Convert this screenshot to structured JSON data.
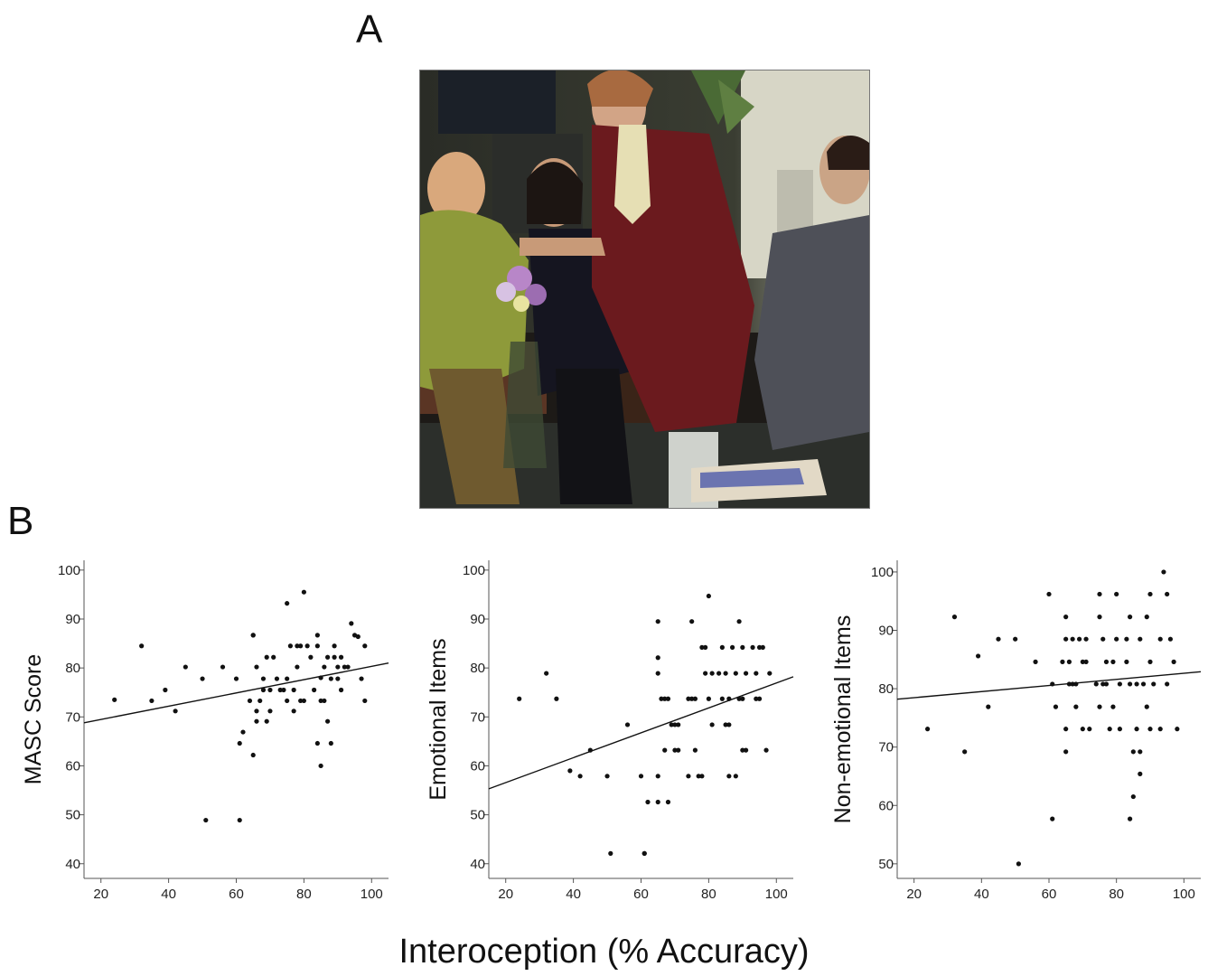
{
  "panels": {
    "a_label": "A",
    "b_label": "B"
  },
  "photo": {
    "icon": "group-conversation-photo"
  },
  "shared_xlabel": "Interoception (% Accuracy)",
  "chart_data": [
    {
      "type": "scatter",
      "ylabel": "MASC Score",
      "xlim": [
        15,
        105
      ],
      "ylim": [
        37,
        102
      ],
      "xticks": [
        20,
        40,
        60,
        80,
        100
      ],
      "yticks": [
        40,
        50,
        60,
        70,
        80,
        90,
        100
      ],
      "fit": [
        [
          15,
          68.8
        ],
        [
          105,
          81.0
        ]
      ],
      "points": [
        [
          24,
          73.5
        ],
        [
          32,
          84.5
        ],
        [
          35,
          73.3
        ],
        [
          39,
          75.5
        ],
        [
          42,
          71.2
        ],
        [
          45,
          80.2
        ],
        [
          50,
          77.8
        ],
        [
          51,
          48.9
        ],
        [
          56,
          80.2
        ],
        [
          60,
          77.8
        ],
        [
          61,
          64.6
        ],
        [
          61,
          48.9
        ],
        [
          62,
          66.9
        ],
        [
          64,
          73.3
        ],
        [
          65,
          86.7
        ],
        [
          65,
          86.7
        ],
        [
          65,
          62.2
        ],
        [
          66,
          71.2
        ],
        [
          66,
          80.2
        ],
        [
          66,
          69.1
        ],
        [
          67,
          73.3
        ],
        [
          68,
          77.8
        ],
        [
          68,
          75.5
        ],
        [
          69,
          82.2
        ],
        [
          69,
          69.1
        ],
        [
          70,
          75.5
        ],
        [
          70,
          71.2
        ],
        [
          71,
          82.2
        ],
        [
          72,
          77.8
        ],
        [
          73,
          75.5
        ],
        [
          74,
          75.5
        ],
        [
          75,
          73.3
        ],
        [
          75,
          77.8
        ],
        [
          75,
          93.2
        ],
        [
          76,
          84.5
        ],
        [
          77,
          75.5
        ],
        [
          77,
          71.2
        ],
        [
          78,
          84.5
        ],
        [
          78,
          80.2
        ],
        [
          79,
          73.3
        ],
        [
          79,
          84.5
        ],
        [
          80,
          73.3
        ],
        [
          80,
          95.5
        ],
        [
          81,
          84.5
        ],
        [
          82,
          82.2
        ],
        [
          83,
          75.5
        ],
        [
          84,
          86.7
        ],
        [
          84,
          64.6
        ],
        [
          84,
          84.5
        ],
        [
          85,
          73.3
        ],
        [
          85,
          78.0
        ],
        [
          85,
          60.0
        ],
        [
          86,
          73.3
        ],
        [
          86,
          80.2
        ],
        [
          87,
          82.2
        ],
        [
          87,
          69.1
        ],
        [
          88,
          64.6
        ],
        [
          88,
          77.8
        ],
        [
          89,
          84.5
        ],
        [
          89,
          82.2
        ],
        [
          90,
          80.2
        ],
        [
          90,
          77.8
        ],
        [
          91,
          82.2
        ],
        [
          91,
          75.5
        ],
        [
          92,
          80.2
        ],
        [
          93,
          80.2
        ],
        [
          94,
          89.1
        ],
        [
          95,
          86.7
        ],
        [
          96,
          86.4
        ],
        [
          97,
          77.8
        ],
        [
          98,
          73.3
        ],
        [
          98,
          84.5
        ]
      ]
    },
    {
      "type": "scatter",
      "ylabel": "Emotional Items",
      "xlim": [
        15,
        105
      ],
      "ylim": [
        37,
        102
      ],
      "xticks": [
        20,
        40,
        60,
        80,
        100
      ],
      "yticks": [
        40,
        50,
        60,
        70,
        80,
        90,
        100
      ],
      "fit": [
        [
          15,
          55.3
        ],
        [
          105,
          78.2
        ]
      ],
      "points": [
        [
          24,
          73.7
        ],
        [
          32,
          78.9
        ],
        [
          35,
          73.7
        ],
        [
          39,
          59.0
        ],
        [
          42,
          57.9
        ],
        [
          45,
          63.2
        ],
        [
          50,
          57.9
        ],
        [
          51,
          42.1
        ],
        [
          56,
          68.4
        ],
        [
          60,
          57.9
        ],
        [
          61,
          42.1
        ],
        [
          61,
          42.1
        ],
        [
          62,
          52.6
        ],
        [
          65,
          89.5
        ],
        [
          65,
          82.1
        ],
        [
          65,
          78.9
        ],
        [
          65,
          57.9
        ],
        [
          65,
          52.6
        ],
        [
          66,
          73.7
        ],
        [
          67,
          73.7
        ],
        [
          67,
          63.2
        ],
        [
          68,
          73.7
        ],
        [
          68,
          52.6
        ],
        [
          69,
          68.4
        ],
        [
          70,
          63.2
        ],
        [
          70,
          68.4
        ],
        [
          71,
          68.4
        ],
        [
          71,
          63.2
        ],
        [
          74,
          73.7
        ],
        [
          74,
          57.9
        ],
        [
          75,
          73.7
        ],
        [
          75,
          89.5
        ],
        [
          76,
          73.7
        ],
        [
          76,
          63.2
        ],
        [
          77,
          57.9
        ],
        [
          78,
          84.2
        ],
        [
          78,
          57.9
        ],
        [
          79,
          84.2
        ],
        [
          79,
          78.9
        ],
        [
          80,
          73.7
        ],
        [
          80,
          94.7
        ],
        [
          81,
          78.9
        ],
        [
          81,
          68.4
        ],
        [
          83,
          78.9
        ],
        [
          84,
          73.7
        ],
        [
          84,
          84.2
        ],
        [
          85,
          78.9
        ],
        [
          85,
          68.4
        ],
        [
          86,
          73.7
        ],
        [
          86,
          68.4
        ],
        [
          86,
          57.9
        ],
        [
          87,
          84.2
        ],
        [
          88,
          78.9
        ],
        [
          88,
          57.9
        ],
        [
          89,
          73.7
        ],
        [
          89,
          89.5
        ],
        [
          90,
          73.7
        ],
        [
          90,
          84.2
        ],
        [
          90,
          63.2
        ],
        [
          91,
          78.9
        ],
        [
          91,
          63.2
        ],
        [
          93,
          84.2
        ],
        [
          94,
          73.7
        ],
        [
          94,
          78.9
        ],
        [
          95,
          84.2
        ],
        [
          95,
          73.7
        ],
        [
          96,
          84.2
        ],
        [
          97,
          63.2
        ],
        [
          98,
          78.9
        ]
      ]
    },
    {
      "type": "scatter",
      "ylabel": "Non-emotional Items",
      "xlim": [
        15,
        105
      ],
      "ylim": [
        47.5,
        102
      ],
      "xticks": [
        20,
        40,
        60,
        80,
        100
      ],
      "yticks": [
        50,
        60,
        70,
        80,
        90,
        100
      ],
      "fit": [
        [
          15,
          78.2
        ],
        [
          105,
          82.9
        ]
      ],
      "points": [
        [
          24,
          73.1
        ],
        [
          32,
          92.3
        ],
        [
          35,
          69.2
        ],
        [
          39,
          85.6
        ],
        [
          42,
          76.9
        ],
        [
          45,
          88.5
        ],
        [
          50,
          88.5
        ],
        [
          51,
          50.0
        ],
        [
          56,
          84.6
        ],
        [
          60,
          96.2
        ],
        [
          61,
          80.8
        ],
        [
          61,
          57.7
        ],
        [
          62,
          76.9
        ],
        [
          64,
          84.6
        ],
        [
          65,
          92.3
        ],
        [
          65,
          88.5
        ],
        [
          65,
          73.1
        ],
        [
          65,
          69.2
        ],
        [
          66,
          80.8
        ],
        [
          66,
          84.6
        ],
        [
          67,
          80.8
        ],
        [
          67,
          88.5
        ],
        [
          68,
          76.9
        ],
        [
          68,
          80.8
        ],
        [
          69,
          88.5
        ],
        [
          70,
          84.6
        ],
        [
          70,
          73.1
        ],
        [
          71,
          88.5
        ],
        [
          71,
          84.6
        ],
        [
          72,
          73.1
        ],
        [
          74,
          80.8
        ],
        [
          75,
          92.3
        ],
        [
          75,
          96.2
        ],
        [
          75,
          76.9
        ],
        [
          76,
          88.5
        ],
        [
          76,
          80.8
        ],
        [
          77,
          84.6
        ],
        [
          77,
          80.8
        ],
        [
          78,
          73.1
        ],
        [
          79,
          84.6
        ],
        [
          79,
          76.9
        ],
        [
          80,
          88.5
        ],
        [
          80,
          96.2
        ],
        [
          81,
          73.1
        ],
        [
          81,
          80.8
        ],
        [
          83,
          84.6
        ],
        [
          83,
          88.5
        ],
        [
          84,
          92.3
        ],
        [
          84,
          80.8
        ],
        [
          84,
          57.7
        ],
        [
          85,
          61.5
        ],
        [
          85,
          69.2
        ],
        [
          86,
          73.1
        ],
        [
          86,
          80.8
        ],
        [
          87,
          69.2
        ],
        [
          87,
          88.5
        ],
        [
          87,
          65.4
        ],
        [
          88,
          80.8
        ],
        [
          89,
          76.9
        ],
        [
          89,
          92.3
        ],
        [
          90,
          73.1
        ],
        [
          90,
          96.2
        ],
        [
          90,
          84.6
        ],
        [
          91,
          80.8
        ],
        [
          93,
          88.5
        ],
        [
          93,
          73.1
        ],
        [
          94,
          100.0
        ],
        [
          95,
          96.2
        ],
        [
          95,
          80.8
        ],
        [
          96,
          88.5
        ],
        [
          97,
          84.6
        ],
        [
          98,
          73.1
        ]
      ]
    }
  ]
}
